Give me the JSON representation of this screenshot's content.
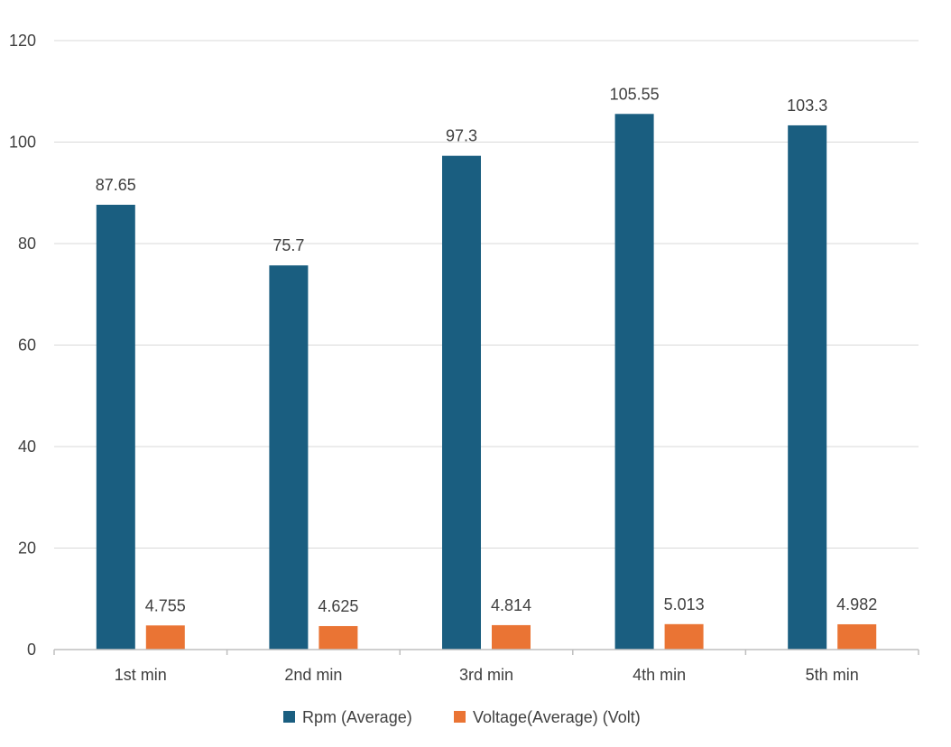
{
  "chart_data": {
    "type": "bar",
    "categories": [
      "1st min",
      "2nd min",
      "3rd min",
      "4th min",
      "5th min"
    ],
    "series": [
      {
        "name": "Rpm (Average)",
        "values": [
          87.65,
          75.7,
          97.3,
          105.55,
          103.3
        ],
        "labels": [
          "87.65",
          "75.7",
          "97.3",
          "105.55",
          "103.3"
        ],
        "color": "#1a5e80"
      },
      {
        "name": "Voltage(Average) (Volt)",
        "values": [
          4.755,
          4.625,
          4.814,
          5.013,
          4.982
        ],
        "labels": [
          "4.755",
          "4.625",
          "4.814",
          "5.013",
          "4.982"
        ],
        "color": "#ea7434"
      }
    ],
    "ylim": [
      0,
      120
    ],
    "yticks": [
      0,
      20,
      40,
      60,
      80,
      100,
      120
    ],
    "grid": true,
    "legend": "bottom",
    "gridColor": "#d9d9d9",
    "axisColor": "#bfbfbf"
  }
}
